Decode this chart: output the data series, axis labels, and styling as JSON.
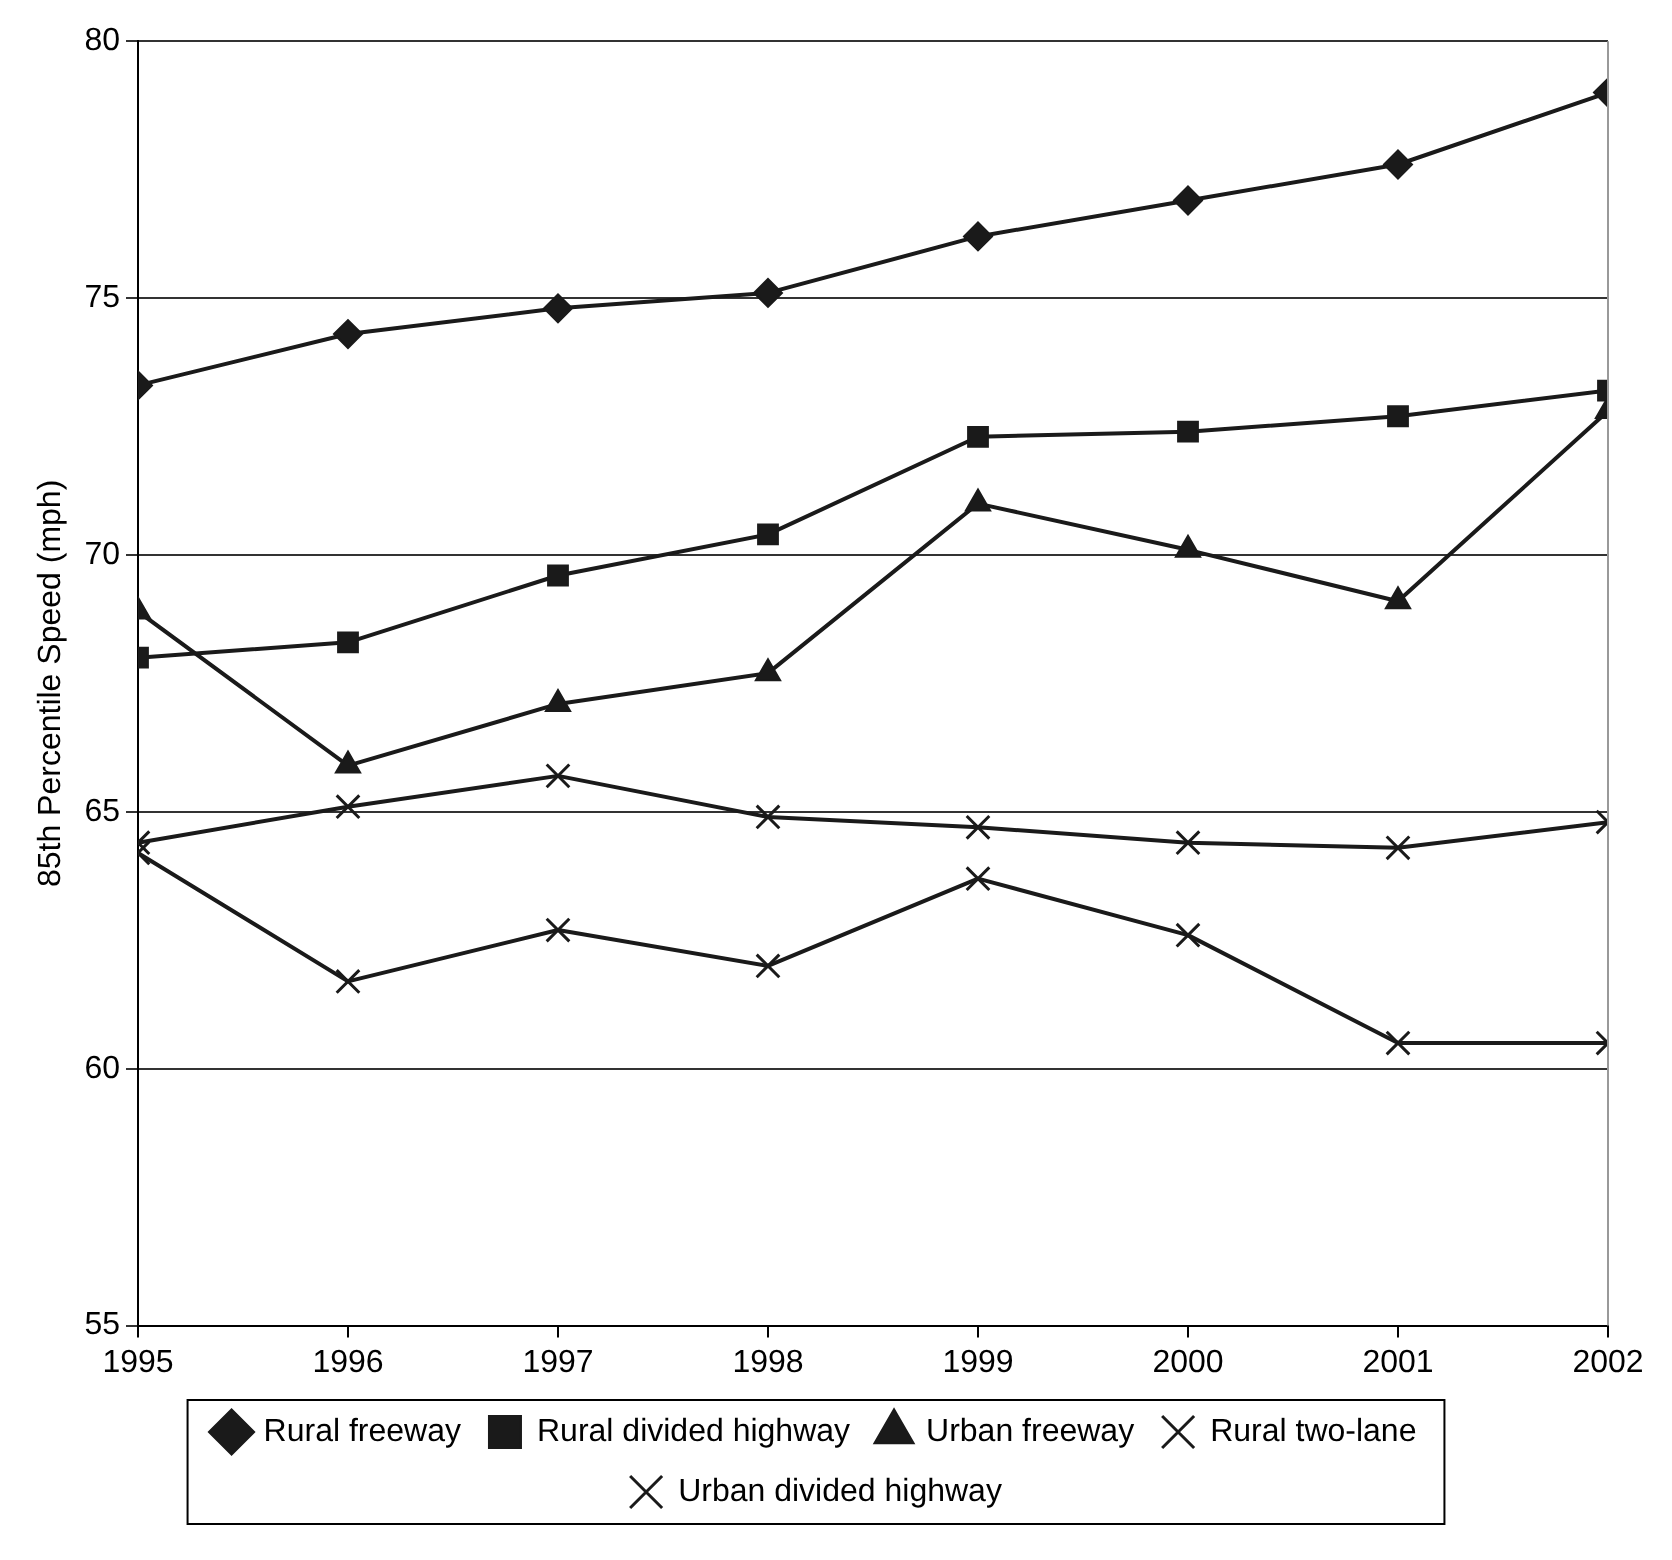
{
  "chart_data": {
    "type": "line",
    "ylabel": "85th Percentile Speed (mph)",
    "x": [
      1995,
      1996,
      1997,
      1998,
      1999,
      2000,
      2001,
      2002
    ],
    "xlim": [
      1995,
      2002
    ],
    "xticks": [
      1995,
      1996,
      1997,
      1998,
      1999,
      2000,
      2001,
      2002
    ],
    "ylim": [
      55,
      80
    ],
    "yticks": [
      55,
      60,
      65,
      70,
      75,
      80
    ],
    "grid": "y",
    "legend": "bottom",
    "line_style": "solid",
    "series": [
      {
        "name": "Rural freeway",
        "color": "#1a1a1a",
        "marker": "diamond",
        "values": [
          73.3,
          74.3,
          74.8,
          75.1,
          76.2,
          76.9,
          77.6,
          79.0
        ]
      },
      {
        "name": "Rural divided highway",
        "color": "#1a1a1a",
        "marker": "square",
        "values": [
          68.0,
          68.3,
          69.6,
          70.4,
          72.3,
          72.4,
          72.7,
          73.2
        ]
      },
      {
        "name": "Urban freeway",
        "color": "#1a1a1a",
        "marker": "triangle",
        "values": [
          68.9,
          65.9,
          67.1,
          67.7,
          71.0,
          70.1,
          69.1,
          72.8
        ]
      },
      {
        "name": "Rural two-lane",
        "color": "#1a1a1a",
        "marker": "cross",
        "values": [
          64.4,
          65.1,
          65.7,
          64.9,
          64.7,
          64.4,
          64.3,
          64.8
        ]
      },
      {
        "name": "Urban divided highway",
        "color": "#1a1a1a",
        "marker": "cross",
        "values": [
          64.2,
          61.7,
          62.7,
          62.0,
          63.7,
          62.6,
          60.5,
          60.5
        ]
      }
    ]
  }
}
